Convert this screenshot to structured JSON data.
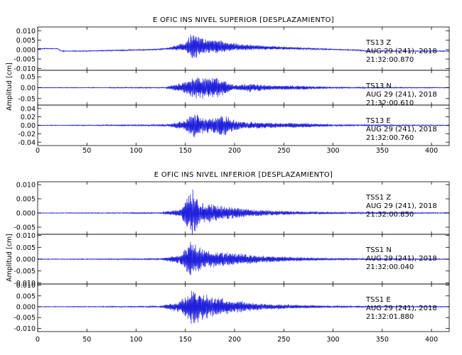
{
  "chart_data": [
    {
      "type": "line",
      "title": "E OFIC INS NIVEL SUPERIOR [DESPLAZAMIENTO]",
      "ylabel": "Amplitud [cm]",
      "xlim": [
        0,
        418
      ],
      "x_ticks": [
        0,
        50,
        100,
        150,
        200,
        250,
        300,
        350,
        400
      ],
      "line_color": "#2020dd",
      "panels": [
        {
          "station": "TS13",
          "component": "Z",
          "date": "AUG 29 (241), 2018",
          "time": "21:32:00.870",
          "ylim": [
            -0.011,
            0.012
          ],
          "y_ticks": [
            0.01,
            0.005,
            0.0,
            -0.005,
            -0.01
          ],
          "y_tick_labels": [
            "0.010",
            "0.005",
            "0.000",
            "-0.005",
            "-0.010"
          ],
          "noise": 0.00015,
          "drift": [
            [
              0,
              0.0005
            ],
            [
              20,
              0.0005
            ],
            [
              24,
              -0.0008
            ],
            [
              45,
              -0.0008
            ],
            [
              120,
              0.0
            ],
            [
              160,
              0.0018
            ],
            [
              250,
              0.0008
            ],
            [
              325,
              -0.0003
            ],
            [
              335,
              -0.0008
            ],
            [
              418,
              -0.0008
            ]
          ],
          "envelope": [
            [
              0,
              0
            ],
            [
              130,
              0.0003
            ],
            [
              150,
              0.0025
            ],
            [
              158,
              0.009
            ],
            [
              165,
              0.0045
            ],
            [
              185,
              0.0035
            ],
            [
              200,
              0.002
            ],
            [
              230,
              0.0011
            ],
            [
              270,
              0.0005
            ],
            [
              300,
              0.0002
            ],
            [
              418,
              5e-05
            ]
          ]
        },
        {
          "station": "TS13",
          "component": "N",
          "date": "AUG 29 (241), 2018",
          "time": "21:32:00.610",
          "ylim": [
            -0.08,
            0.08
          ],
          "y_ticks": [
            0.05,
            0.0,
            -0.05
          ],
          "y_tick_labels": [
            "0.05",
            "0.00",
            "-0.05"
          ],
          "noise": 0.001,
          "drift": [
            [
              0,
              0
            ],
            [
              418,
              0
            ]
          ],
          "envelope": [
            [
              0,
              0
            ],
            [
              130,
              0.002
            ],
            [
              150,
              0.03
            ],
            [
              160,
              0.055
            ],
            [
              175,
              0.05
            ],
            [
              185,
              0.045
            ],
            [
              200,
              0.012
            ],
            [
              215,
              0.02
            ],
            [
              240,
              0.01
            ],
            [
              270,
              0.009
            ],
            [
              300,
              0.003
            ],
            [
              418,
              0.0008
            ]
          ]
        },
        {
          "station": "TS13",
          "component": "E",
          "date": "AUG 29 (241), 2018",
          "time": "21:32:00.760",
          "ylim": [
            -0.048,
            0.048
          ],
          "y_ticks": [
            0.04,
            0.02,
            0.0,
            -0.02,
            -0.04
          ],
          "y_tick_labels": [
            "0.04",
            "0.02",
            "0.00",
            "-0.02",
            "-0.04"
          ],
          "noise": 0.0005,
          "drift": [
            [
              0,
              0
            ],
            [
              418,
              0
            ]
          ],
          "envelope": [
            [
              0,
              0
            ],
            [
              130,
              0.002
            ],
            [
              150,
              0.012
            ],
            [
              158,
              0.03
            ],
            [
              170,
              0.018
            ],
            [
              190,
              0.025
            ],
            [
              205,
              0.01
            ],
            [
              240,
              0.006
            ],
            [
              270,
              0.006
            ],
            [
              300,
              0.002
            ],
            [
              418,
              0.0006
            ]
          ]
        }
      ]
    },
    {
      "type": "line",
      "title": "E OFIC INS NIVEL INFERIOR [DESPLAZAMIENTO]",
      "ylabel": "Amplitud [cm]",
      "xlim": [
        0,
        418
      ],
      "x_ticks": [
        0,
        50,
        100,
        150,
        200,
        250,
        300,
        350,
        400
      ],
      "line_color": "#2020dd",
      "panels": [
        {
          "station": "TSS1",
          "component": "Z",
          "date": "AUG 29 (241), 2018",
          "time": "21:32:00.850",
          "ylim": [
            -0.0075,
            0.011
          ],
          "y_ticks": [
            0.01,
            0.005,
            0.0,
            -0.005
          ],
          "y_tick_labels": [
            "0.010",
            "0.005",
            "0.000",
            "-0.005"
          ],
          "noise": 8e-05,
          "drift": [
            [
              0,
              0
            ],
            [
              418,
              0
            ]
          ],
          "envelope": [
            [
              0,
              0
            ],
            [
              125,
              0.0002
            ],
            [
              145,
              0.0015
            ],
            [
              157,
              0.0095
            ],
            [
              165,
              0.004
            ],
            [
              190,
              0.0025
            ],
            [
              220,
              0.0012
            ],
            [
              260,
              0.0006
            ],
            [
              300,
              0.0003
            ],
            [
              418,
              0.0001
            ]
          ]
        },
        {
          "station": "TSS1",
          "component": "N",
          "date": "AUG 29 (241), 2018",
          "time": "21:32:00.040",
          "ylim": [
            -0.0105,
            0.0105
          ],
          "y_ticks": [
            0.01,
            0.005,
            0.0,
            -0.005,
            -0.01
          ],
          "y_tick_labels": [
            "0.010",
            "0.005",
            "0.000",
            "-0.005",
            "-0.010"
          ],
          "noise": 0.0001,
          "drift": [
            [
              0,
              0
            ],
            [
              418,
              0
            ]
          ],
          "envelope": [
            [
              0,
              0
            ],
            [
              125,
              0.0003
            ],
            [
              145,
              0.002
            ],
            [
              157,
              0.0085
            ],
            [
              170,
              0.004
            ],
            [
              195,
              0.003
            ],
            [
              230,
              0.0015
            ],
            [
              270,
              0.0007
            ],
            [
              300,
              0.0004
            ],
            [
              418,
              0.0001
            ]
          ]
        },
        {
          "station": "TSS1",
          "component": "E",
          "date": "AUG 29 (241), 2018",
          "time": "21:32:01.880",
          "ylim": [
            -0.0115,
            0.0105
          ],
          "y_ticks": [
            0.01,
            0.005,
            0.0,
            -0.005,
            -0.01
          ],
          "y_tick_labels": [
            "0.010",
            "0.005",
            "0.000",
            "-0.005",
            "-0.010"
          ],
          "noise": 0.0001,
          "drift": [
            [
              0,
              0
            ],
            [
              418,
              0
            ]
          ],
          "envelope": [
            [
              0,
              0
            ],
            [
              125,
              0.0003
            ],
            [
              145,
              0.003
            ],
            [
              158,
              0.009
            ],
            [
              175,
              0.005
            ],
            [
              200,
              0.003
            ],
            [
              230,
              0.0014
            ],
            [
              270,
              0.0007
            ],
            [
              300,
              0.0004
            ],
            [
              418,
              0.0001
            ]
          ]
        }
      ]
    }
  ]
}
